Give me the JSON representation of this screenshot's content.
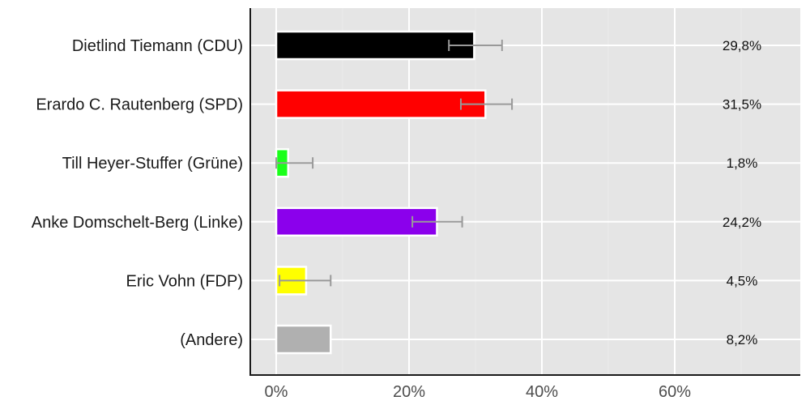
{
  "chart_data": {
    "type": "bar",
    "orientation": "horizontal",
    "title": "",
    "xlabel": "",
    "ylabel": "",
    "xlim": [
      -4,
      79
    ],
    "x_ticks": [
      0,
      20,
      40,
      60
    ],
    "x_tick_labels": [
      "0%",
      "20%",
      "40%",
      "60%"
    ],
    "grid": true,
    "legend": null,
    "categories": [
      "Dietlind Tiemann (CDU)",
      "Erardo C. Rautenberg (SPD)",
      "Till Heyer-Stuffer (Grüne)",
      "Anke Domschelt-Berg (Linke)",
      "Eric Vohn (FDP)",
      "(Andere)"
    ],
    "values": [
      29.8,
      31.5,
      1.8,
      24.2,
      4.5,
      8.2
    ],
    "value_labels": [
      "29,8%",
      "31,5%",
      "1,8%",
      "24,2%",
      "4,5%",
      "8,2%"
    ],
    "colors": [
      "#000000",
      "#ff0000",
      "#1aff1a",
      "#8b00ec",
      "#ffff00",
      "#b0b0b0"
    ],
    "error_bars": [
      {
        "low": 26.0,
        "high": 34.0
      },
      {
        "low": 27.8,
        "high": 35.5
      },
      {
        "low": 0.0,
        "high": 5.5
      },
      {
        "low": 20.5,
        "high": 28.0
      },
      {
        "low": 0.5,
        "high": 8.2
      },
      null
    ]
  },
  "style": {
    "panel_bg": "#e5e5e5",
    "grid_major": "#ffffff",
    "grid_minor": "#ececec",
    "errorbar_color": "#999999",
    "axis_color": "#1a1a1a"
  }
}
